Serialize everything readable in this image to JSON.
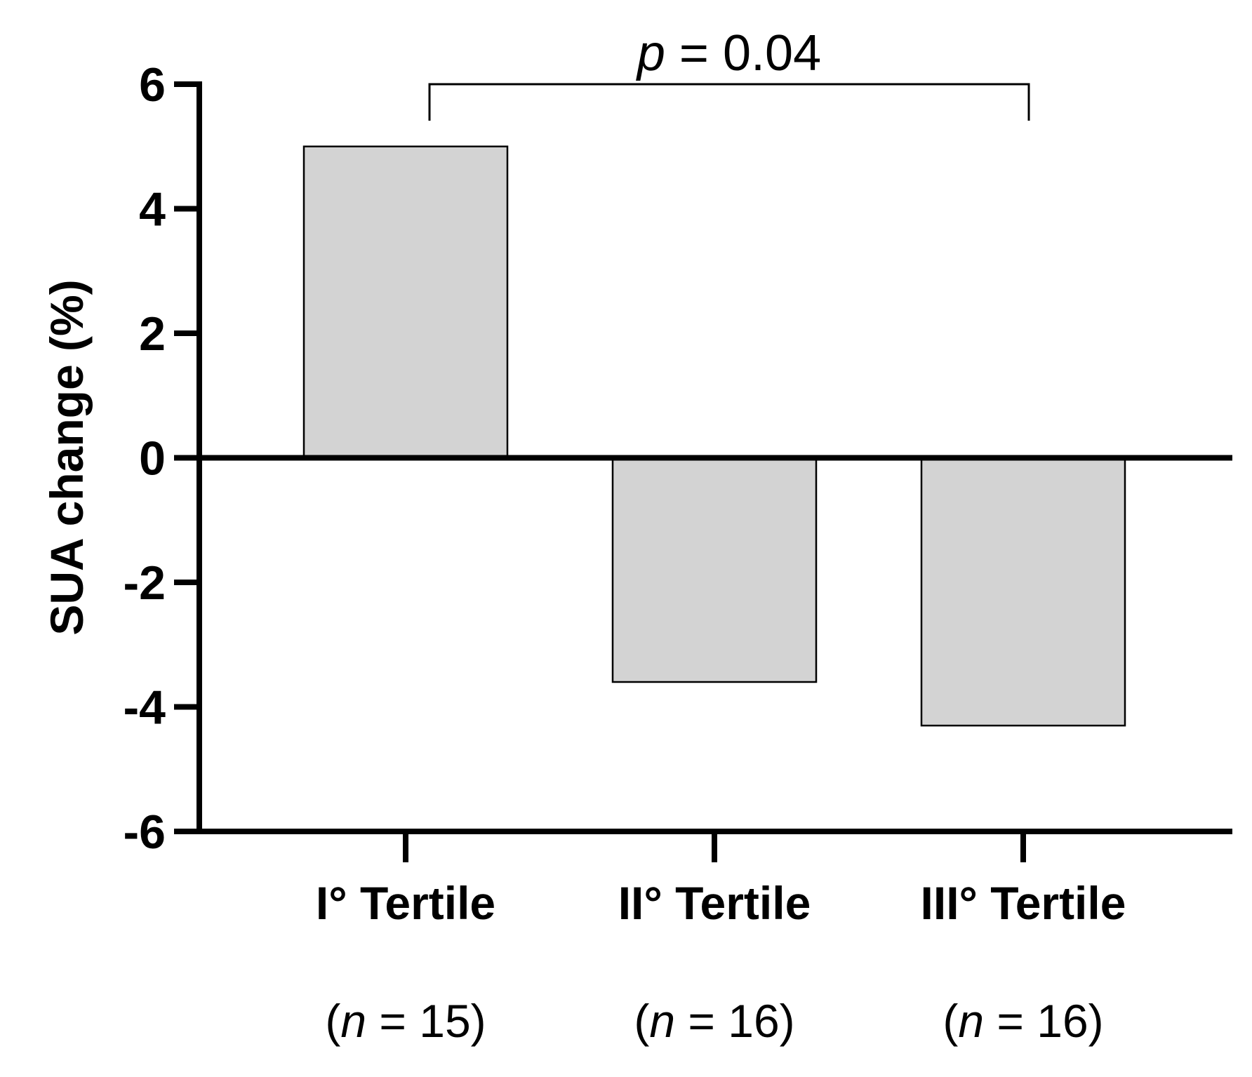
{
  "chart_data": {
    "type": "bar",
    "categories": [
      "I° Tertile",
      "II° Tertile",
      "III° Tertile"
    ],
    "n_labels": [
      {
        "prefix": "(",
        "var": "n",
        "rest": " = 15)"
      },
      {
        "prefix": "(",
        "var": "n",
        "rest": " = 16)"
      },
      {
        "prefix": "(",
        "var": "n",
        "rest": " = 16)"
      }
    ],
    "values": [
      5.0,
      -3.6,
      -4.3
    ],
    "ylabel": "SUA change (%)",
    "ylim": [
      -6,
      6
    ],
    "yticks": [
      "6",
      "4",
      "2",
      "0",
      "-2",
      "-4",
      "-6"
    ],
    "ytick_values": [
      6,
      4,
      2,
      0,
      -2,
      -4,
      -6
    ],
    "bar_color": "#d3d3d3",
    "annotation": {
      "var": "p",
      "rest": " = 0.04",
      "from": 0,
      "to": 2
    },
    "grid": false
  }
}
